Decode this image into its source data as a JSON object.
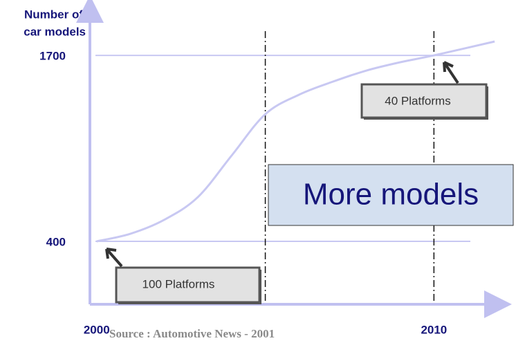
{
  "chart_data": {
    "type": "line",
    "y_label": [
      "Number of",
      "car models"
    ],
    "x": [
      2000,
      2001,
      2002,
      2003,
      2004,
      2005,
      2006,
      2007,
      2008,
      2009,
      2010,
      2011.8
    ],
    "values": [
      400,
      453,
      550,
      709,
      999,
      1289,
      1425,
      1516,
      1594,
      1652,
      1700,
      1797
    ],
    "color": "#c8c8f2",
    "xlim": [
      1999.8,
      2011.9
    ],
    "xticks": [
      2000,
      2010
    ],
    "ylim": [
      -40,
      2063
    ],
    "yticks": [
      400,
      1700
    ],
    "grid": true,
    "vlines": [
      2005,
      2010
    ],
    "annotations": [
      "100 Platforms",
      "40 Platforms",
      "More models"
    ],
    "source": "Source : Automotive News - 2001"
  }
}
